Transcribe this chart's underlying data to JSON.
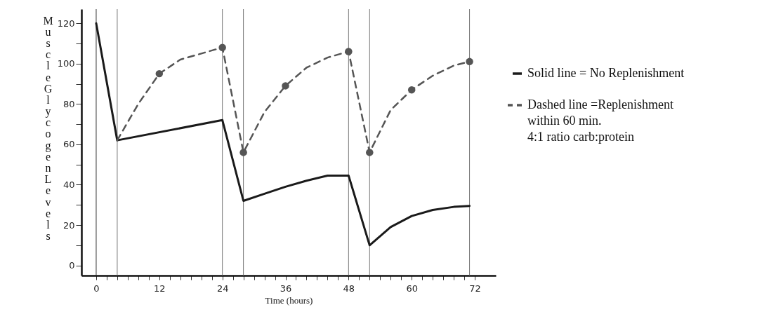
{
  "chart_data": {
    "type": "line",
    "xlabel": "Time (hours)",
    "ylabel": "Muscle Glycogen Levels",
    "xlim": [
      -2.8,
      76
    ],
    "ylim": [
      -5,
      127
    ],
    "xticks": [
      0,
      {
        "value": 2,
        "label": null
      },
      {
        "value": 4,
        "label": null
      },
      {
        "value": 6,
        "label": null
      },
      {
        "value": 8,
        "label": null
      },
      {
        "value": 10,
        "label": null
      },
      12,
      {
        "value": 14,
        "label": null
      },
      {
        "value": 16,
        "label": null
      },
      {
        "value": 18,
        "label": null
      },
      {
        "value": 20,
        "label": null
      },
      {
        "value": 22,
        "label": null
      },
      24,
      {
        "value": 26,
        "label": null
      },
      {
        "value": 28,
        "label": null
      },
      {
        "value": 30,
        "label": null
      },
      {
        "value": 32,
        "label": null
      },
      {
        "value": 34,
        "label": null
      },
      36,
      {
        "value": 38,
        "label": null
      },
      {
        "value": 40,
        "label": null
      },
      {
        "value": 42,
        "label": null
      },
      {
        "value": 44,
        "label": null
      },
      {
        "value": 46,
        "label": null
      },
      48,
      {
        "value": 50,
        "label": null
      },
      {
        "value": 52,
        "label": null
      },
      {
        "value": 54,
        "label": null
      },
      {
        "value": 56,
        "label": null
      },
      {
        "value": 58,
        "label": null
      },
      60,
      {
        "value": 62,
        "label": null
      },
      {
        "value": 64,
        "label": null
      },
      {
        "value": 66,
        "label": null
      },
      {
        "value": 68,
        "label": null
      },
      {
        "value": 70,
        "label": null
      },
      72
    ],
    "yticks": [
      0,
      {
        "value": 10,
        "label": null
      },
      20,
      {
        "value": 30,
        "label": null
      },
      40,
      {
        "value": 50,
        "label": null
      },
      60,
      {
        "value": 70,
        "label": null
      },
      80,
      {
        "value": 90,
        "label": null
      },
      100,
      {
        "value": 110,
        "label": null
      },
      120
    ],
    "grid": false,
    "legend": "right",
    "series": [
      {
        "name": "Solid line = No Replenishment",
        "color": "#1a1a1a",
        "line_style": "solid",
        "marker": "none",
        "x": [
          0,
          4,
          24,
          28,
          32,
          36,
          40,
          44,
          48,
          52,
          56,
          60,
          64,
          68,
          71
        ],
        "values": [
          120,
          62,
          72,
          32,
          35.5,
          39,
          42,
          44.5,
          44.5,
          10,
          19,
          24.5,
          27.5,
          29,
          29.5
        ]
      },
      {
        "name": "Dashed line =Replenishment\nwithin 60 min.\n4:1 ratio carb:protein",
        "color": "#555555",
        "line_style": "dashed",
        "marker": "none",
        "x": [
          4,
          8,
          12,
          16,
          20,
          24,
          28,
          32,
          36,
          40,
          44,
          48,
          52,
          56,
          60,
          64,
          68,
          71
        ],
        "values": [
          62,
          80,
          95,
          102,
          105,
          108,
          56,
          76,
          89,
          98,
          103,
          106,
          56,
          77,
          87,
          94,
          99,
          101
        ]
      },
      {
        "type": "scatter",
        "color": "#555555",
        "marker": "circle",
        "x": [
          12,
          24,
          28,
          36,
          48,
          52,
          60,
          71
        ],
        "values": [
          95,
          108,
          56,
          89,
          106,
          56,
          87,
          101
        ]
      }
    ],
    "ref_lines": [
      {
        "axis": "x",
        "value": 0,
        "color": "#333333"
      },
      {
        "axis": "x",
        "value": 4,
        "color": "#777777"
      },
      {
        "axis": "x",
        "value": 24,
        "color": "#777777"
      },
      {
        "axis": "x",
        "value": 28,
        "color": "#777777"
      },
      {
        "axis": "x",
        "value": 48,
        "color": "#777777"
      },
      {
        "axis": "x",
        "value": 52,
        "color": "#777777"
      },
      {
        "axis": "x",
        "value": 71,
        "color": "#777777"
      }
    ]
  }
}
